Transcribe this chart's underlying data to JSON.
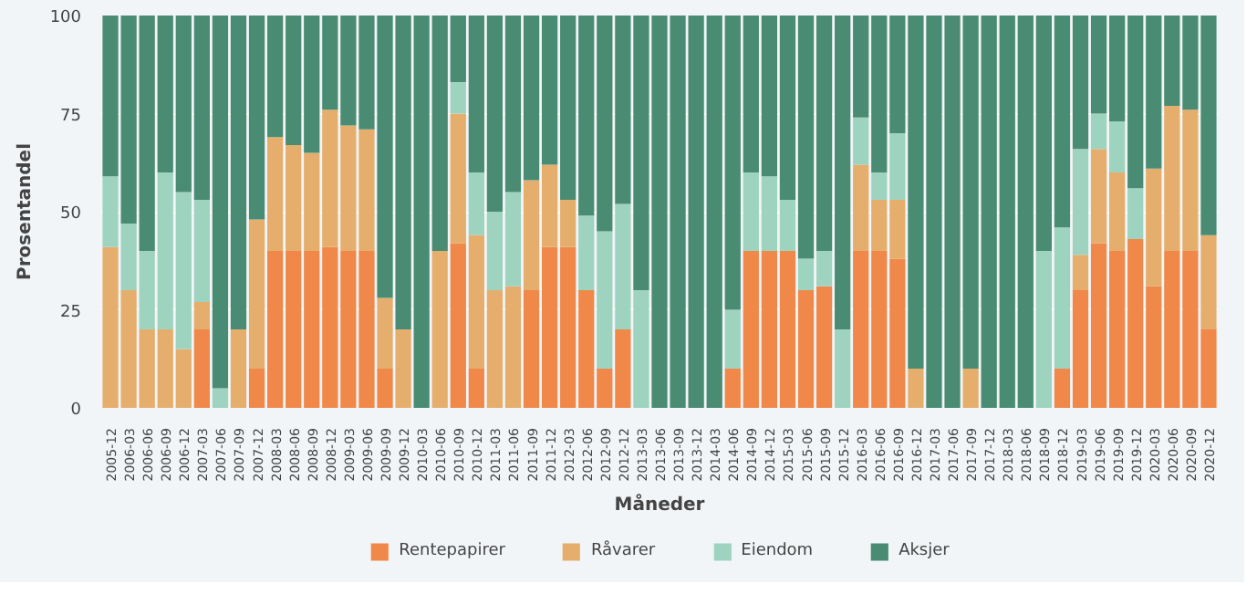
{
  "chart_data": {
    "type": "bar",
    "stacked": true,
    "xlabel": "Måneder",
    "ylabel": "Prosentandel",
    "categories": [
      "2005-12",
      "2006-03",
      "2006-06",
      "2006-09",
      "2006-12",
      "2007-03",
      "2007-06",
      "2007-09",
      "2007-12",
      "2008-03",
      "2008-06",
      "2008-09",
      "2008-12",
      "2009-03",
      "2009-06",
      "2009-09",
      "2009-12",
      "2010-03",
      "2010-06",
      "2010-09",
      "2010-12",
      "2011-03",
      "2011-06",
      "2011-09",
      "2011-12",
      "2012-03",
      "2012-06",
      "2012-09",
      "2012-12",
      "2013-03",
      "2013-06",
      "2013-09",
      "2013-12",
      "2014-03",
      "2014-06",
      "2014-09",
      "2014-12",
      "2015-03",
      "2015-06",
      "2015-09",
      "2015-12",
      "2016-03",
      "2016-06",
      "2016-09",
      "2016-12",
      "2017-03",
      "2017-06",
      "2017-09",
      "2017-12",
      "2018-03",
      "2018-06",
      "2018-09",
      "2018-12",
      "2019-03",
      "2019-06",
      "2019-09",
      "2019-12",
      "2020-03",
      "2020-06",
      "2020-09",
      "2020-12"
    ],
    "series": [
      {
        "name": "Rentepapirer",
        "color": "#f0884a",
        "values": [
          0,
          0,
          0,
          0,
          0,
          20,
          0,
          0,
          10,
          40,
          40,
          40,
          41,
          40,
          40,
          10,
          0,
          0,
          0,
          42,
          10,
          0,
          0,
          30,
          41,
          41,
          30,
          10,
          20,
          0,
          0,
          0,
          0,
          0,
          10,
          40,
          40,
          40,
          30,
          31,
          0,
          40,
          40,
          38,
          0,
          0,
          0,
          0,
          0,
          0,
          0,
          0,
          10,
          30,
          42,
          40,
          43,
          31,
          40,
          40,
          20
        ]
      },
      {
        "name": "Råvarer",
        "color": "#e6ae6c",
        "values": [
          41,
          30,
          20,
          20,
          15,
          7,
          0,
          20,
          38,
          29,
          27,
          25,
          35,
          32,
          31,
          18,
          20,
          0,
          40,
          33,
          34,
          30,
          31,
          28,
          21,
          12,
          0,
          0,
          0,
          0,
          0,
          0,
          0,
          0,
          0,
          0,
          0,
          0,
          0,
          0,
          0,
          22,
          13,
          15,
          10,
          0,
          0,
          10,
          0,
          0,
          0,
          0,
          0,
          9,
          24,
          20,
          0,
          30,
          37,
          36,
          24
        ]
      },
      {
        "name": "Eiendom",
        "color": "#9ed4bf",
        "values": [
          18,
          17,
          20,
          40,
          40,
          26,
          5,
          0,
          0,
          0,
          0,
          0,
          0,
          0,
          0,
          0,
          0,
          0,
          0,
          8,
          16,
          20,
          24,
          0,
          0,
          0,
          19,
          35,
          32,
          30,
          0,
          0,
          0,
          0,
          15,
          20,
          19,
          13,
          8,
          9,
          20,
          12,
          7,
          17,
          0,
          0,
          0,
          0,
          0,
          0,
          0,
          40,
          36,
          27,
          9,
          13,
          13,
          0,
          0,
          0,
          0
        ]
      },
      {
        "name": "Aksjer",
        "color": "#4a8c73",
        "values": [
          41,
          53,
          60,
          40,
          45,
          47,
          95,
          80,
          52,
          31,
          33,
          35,
          24,
          28,
          29,
          72,
          80,
          100,
          60,
          17,
          40,
          50,
          45,
          42,
          38,
          47,
          51,
          55,
          48,
          70,
          100,
          100,
          100,
          100,
          75,
          40,
          41,
          47,
          62,
          60,
          80,
          26,
          40,
          30,
          90,
          100,
          100,
          90,
          100,
          100,
          100,
          60,
          54,
          34,
          25,
          27,
          44,
          39,
          23,
          24,
          56
        ]
      }
    ],
    "ylim": [
      0,
      100
    ],
    "yticks": [
      0,
      25,
      50,
      75,
      100
    ],
    "grid": "y",
    "legend": "bottom"
  }
}
